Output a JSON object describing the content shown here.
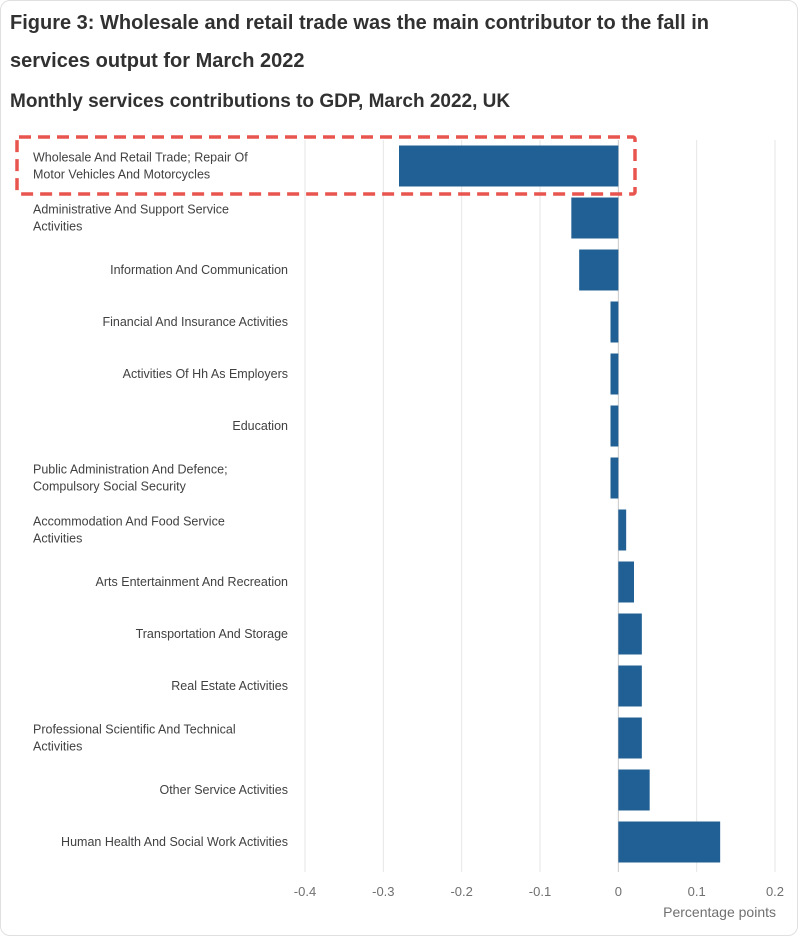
{
  "chart_data": {
    "type": "bar",
    "orientation": "horizontal",
    "title": "Figure 3: Wholesale and retail trade was the main contributor to the fall in services output for March 2022",
    "subtitle": "Monthly services contributions to GDP, March 2022, UK",
    "xlabel": "Percentage points",
    "xlim": [
      -0.4,
      0.2
    ],
    "xticks": [
      -0.4,
      -0.3,
      -0.2,
      -0.1,
      0,
      0.1,
      0.2
    ],
    "tick_labels": [
      "-0.4",
      "-0.3",
      "-0.2",
      "-0.1",
      "0",
      "0.1",
      "0.2"
    ],
    "grid": true,
    "bar_color": "#206095",
    "highlight_color": "#e8554e",
    "highlight_index": 0,
    "categories": [
      [
        "Wholesale And Retail Trade; Repair Of",
        "Motor Vehicles And Motorcycles"
      ],
      [
        "Administrative And Support Service",
        "Activities"
      ],
      [
        "Information And Communication"
      ],
      [
        "Financial And Insurance Activities"
      ],
      [
        "Activities Of Hh As Employers"
      ],
      [
        "Education"
      ],
      [
        "Public Administration And Defence;",
        "Compulsory Social Security"
      ],
      [
        "Accommodation And Food Service",
        "Activities"
      ],
      [
        "Arts Entertainment And Recreation"
      ],
      [
        "Transportation And Storage"
      ],
      [
        "Real Estate Activities"
      ],
      [
        "Professional Scientific And Technical",
        "Activities"
      ],
      [
        "Other Service Activities"
      ],
      [
        "Human Health And Social Work Activities"
      ]
    ],
    "values": [
      -0.28,
      -0.06,
      -0.05,
      -0.01,
      -0.01,
      -0.01,
      -0.01,
      0.01,
      0.02,
      0.03,
      0.03,
      0.03,
      0.04,
      0.13
    ]
  }
}
